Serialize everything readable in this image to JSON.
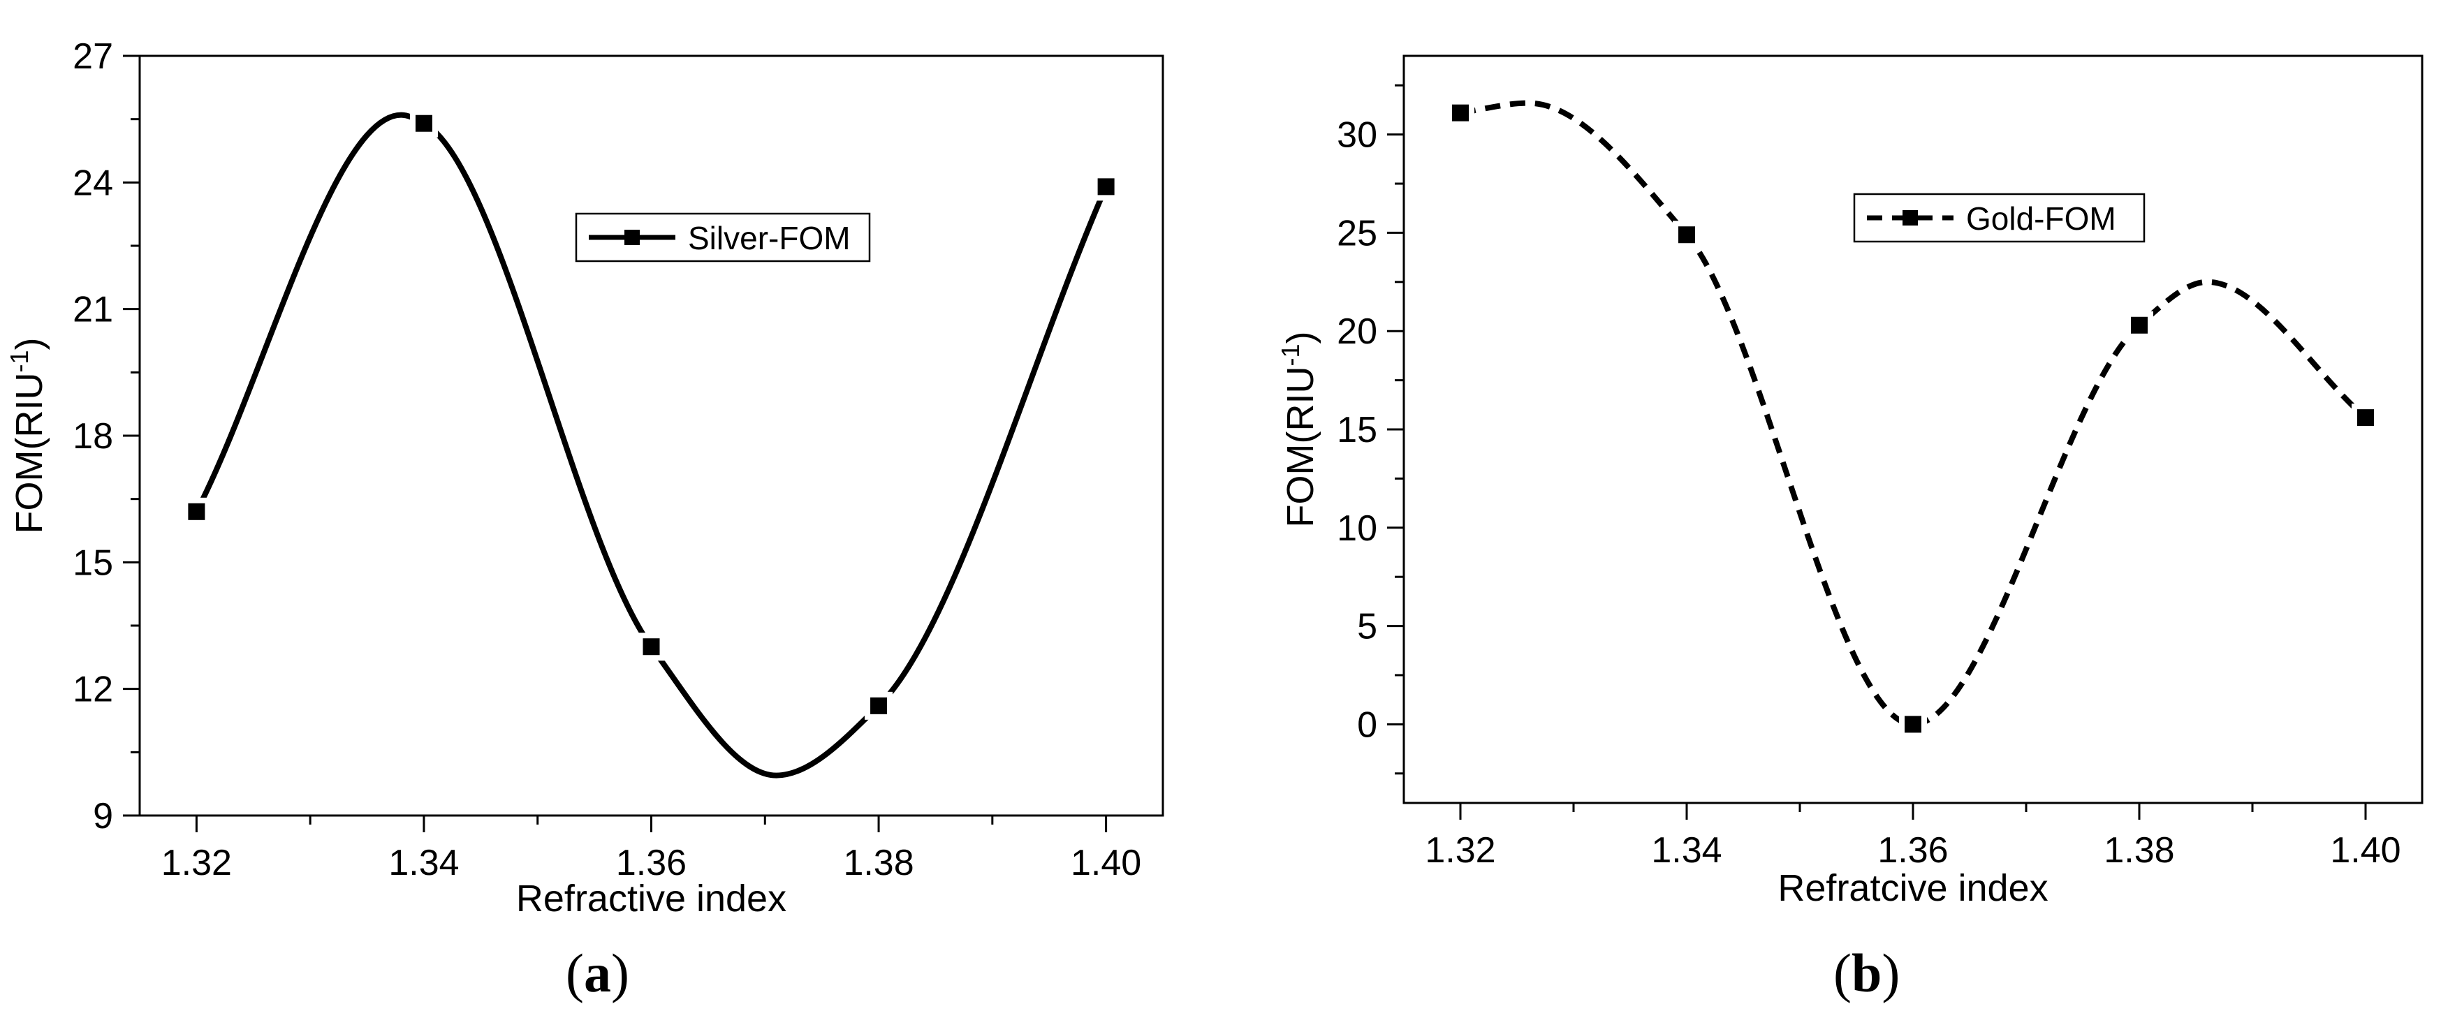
{
  "chart_data": [
    {
      "type": "line",
      "panel_label": "a",
      "x": [
        1.32,
        1.34,
        1.36,
        1.38,
        1.4
      ],
      "series": [
        {
          "name": "Silver-FOM",
          "values": [
            16.2,
            25.4,
            13.0,
            11.6,
            23.9
          ]
        }
      ],
      "curve_extrema": [
        {
          "x": 1.338,
          "y": 25.6
        },
        {
          "x": 1.371,
          "y": 9.95
        }
      ],
      "xlabel": "Refractive index",
      "ylabel": "FOM(RIU",
      "ylabel_superscript": "-1",
      "ylabel_suffix": ")",
      "xlim": [
        1.315,
        1.405
      ],
      "ylim": [
        9,
        27
      ],
      "xticks": [
        "1.32",
        "1.34",
        "1.36",
        "1.38",
        "1.40"
      ],
      "yticks": [
        "9",
        "12",
        "15",
        "18",
        "21",
        "24",
        "27"
      ],
      "line_style": "solid",
      "marker": "square",
      "grid": false,
      "legend_position": "top-center"
    },
    {
      "type": "line",
      "panel_label": "b",
      "x": [
        1.32,
        1.34,
        1.36,
        1.38,
        1.4
      ],
      "series": [
        {
          "name": "Gold-FOM",
          "values": [
            31.1,
            24.9,
            0.0,
            20.3,
            15.6
          ]
        }
      ],
      "curve_extrema": [
        {
          "x": 1.326,
          "y": 31.6
        },
        {
          "x": 1.386,
          "y": 22.5
        }
      ],
      "xlabel": "Refratcive index",
      "ylabel": "FOM(RIU",
      "ylabel_superscript": "-1",
      "ylabel_suffix": ")",
      "xlim": [
        1.315,
        1.405
      ],
      "ylim": [
        -4,
        34
      ],
      "xticks": [
        "1.32",
        "1.34",
        "1.36",
        "1.38",
        "1.40"
      ],
      "yticks": [
        "0",
        "5",
        "10",
        "15",
        "20",
        "25",
        "30"
      ],
      "line_style": "dashed",
      "marker": "square",
      "grid": false,
      "legend_position": "top-center"
    }
  ]
}
